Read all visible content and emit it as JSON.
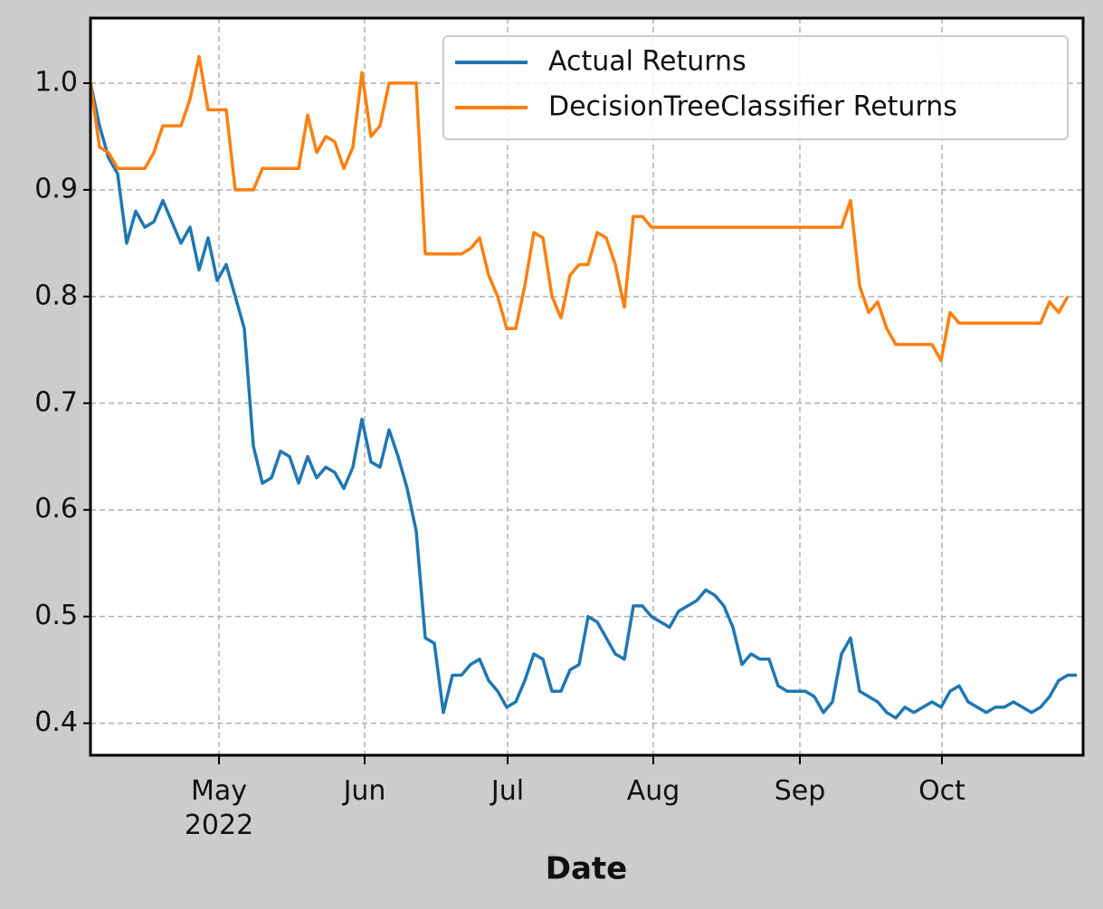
{
  "chart_data": {
    "type": "line",
    "x_label": "Date",
    "xlim": [
      0,
      109.7
    ],
    "xticks": [
      {
        "value": 14.2,
        "label": "May\n2022"
      },
      {
        "value": 30.3,
        "label": "Jun"
      },
      {
        "value": 46.1,
        "label": "Jul"
      },
      {
        "value": 62.2,
        "label": "Aug"
      },
      {
        "value": 78.4,
        "label": "Sep"
      },
      {
        "value": 94.1,
        "label": "Oct"
      }
    ],
    "ylim": [
      0.37,
      1.061
    ],
    "yticks": [
      {
        "value": 0.4,
        "label": "0.4"
      },
      {
        "value": 0.5,
        "label": "0.5"
      },
      {
        "value": 0.6,
        "label": "0.6"
      },
      {
        "value": 0.7,
        "label": "0.7"
      },
      {
        "value": 0.8,
        "label": "0.8"
      },
      {
        "value": 0.9,
        "label": "0.9"
      },
      {
        "value": 1.0,
        "label": "1.0"
      }
    ],
    "grid": true,
    "legend": "upper right",
    "series": [
      {
        "name": "Actual Returns",
        "color": "#1f77b4",
        "values": [
          1.0,
          0.96,
          0.93,
          0.915,
          0.85,
          0.88,
          0.865,
          0.87,
          0.89,
          0.87,
          0.85,
          0.865,
          0.825,
          0.855,
          0.815,
          0.83,
          0.8,
          0.77,
          0.66,
          0.625,
          0.63,
          0.655,
          0.65,
          0.625,
          0.65,
          0.63,
          0.64,
          0.635,
          0.62,
          0.64,
          0.685,
          0.645,
          0.64,
          0.675,
          0.65,
          0.62,
          0.58,
          0.48,
          0.475,
          0.41,
          0.445,
          0.445,
          0.455,
          0.46,
          0.44,
          0.43,
          0.415,
          0.42,
          0.44,
          0.465,
          0.46,
          0.43,
          0.43,
          0.45,
          0.455,
          0.5,
          0.495,
          0.48,
          0.465,
          0.46,
          0.51,
          0.51,
          0.5,
          0.495,
          0.49,
          0.505,
          0.51,
          0.515,
          0.525,
          0.52,
          0.51,
          0.49,
          0.455,
          0.465,
          0.46,
          0.46,
          0.435,
          0.43,
          0.43,
          0.43,
          0.425,
          0.41,
          0.42,
          0.465,
          0.48,
          0.43,
          0.425,
          0.42,
          0.41,
          0.405,
          0.415,
          0.41,
          0.415,
          0.42,
          0.415,
          0.43,
          0.435,
          0.42,
          0.415,
          0.41,
          0.415,
          0.415,
          0.42,
          0.415,
          0.41,
          0.415,
          0.425,
          0.44,
          0.445,
          0.445
        ]
      },
      {
        "name": "DecisionTreeClassifier Returns",
        "color": "#ff7f0e",
        "values": [
          1.0,
          0.94,
          0.935,
          0.92,
          0.92,
          0.92,
          0.92,
          0.935,
          0.96,
          0.96,
          0.96,
          0.985,
          1.025,
          0.975,
          0.975,
          0.975,
          0.9,
          0.9,
          0.9,
          0.92,
          0.92,
          0.92,
          0.92,
          0.92,
          0.97,
          0.935,
          0.95,
          0.945,
          0.92,
          0.94,
          1.01,
          0.95,
          0.96,
          1.0,
          1.0,
          1.0,
          1.0,
          0.84,
          0.84,
          0.84,
          0.84,
          0.84,
          0.845,
          0.855,
          0.82,
          0.8,
          0.77,
          0.77,
          0.81,
          0.86,
          0.855,
          0.8,
          0.78,
          0.82,
          0.83,
          0.83,
          0.86,
          0.855,
          0.83,
          0.79,
          0.875,
          0.875,
          0.865,
          0.865,
          0.865,
          0.865,
          0.865,
          0.865,
          0.865,
          0.865,
          0.865,
          0.865,
          0.865,
          0.865,
          0.865,
          0.865,
          0.865,
          0.865,
          0.865,
          0.865,
          0.865,
          0.865,
          0.865,
          0.865,
          0.89,
          0.81,
          0.785,
          0.795,
          0.77,
          0.755,
          0.755,
          0.755,
          0.755,
          0.755,
          0.74,
          0.785,
          0.775,
          0.775,
          0.775,
          0.775,
          0.775,
          0.775,
          0.775,
          0.775,
          0.775,
          0.775,
          0.795,
          0.785,
          0.8
        ]
      }
    ]
  }
}
